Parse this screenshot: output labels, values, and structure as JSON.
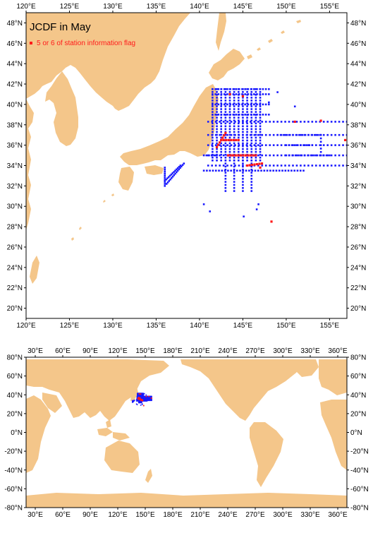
{
  "colors": {
    "land": "#f4c68a",
    "ocean": "#ffffff",
    "normal_station": "#1a1aff",
    "flagged_station": "#ff1a1a",
    "frame": "#000000"
  },
  "legend": {
    "title": "JCDF in May",
    "entry": "5 or 6 of station information flag"
  },
  "regional_map": {
    "lon_range": [
      120,
      157
    ],
    "lat_range": [
      19,
      49
    ],
    "lon_ticks": [
      {
        "value": 120,
        "label": "120°E"
      },
      {
        "value": 125,
        "label": "125°E"
      },
      {
        "value": 130,
        "label": "130°E"
      },
      {
        "value": 135,
        "label": "135°E"
      },
      {
        "value": 140,
        "label": "140°E"
      },
      {
        "value": 145,
        "label": "145°E"
      },
      {
        "value": 150,
        "label": "150°E"
      },
      {
        "value": 155,
        "label": "155°E"
      }
    ],
    "lat_ticks": [
      {
        "value": 20,
        "label": "20°N"
      },
      {
        "value": 22,
        "label": "22°N"
      },
      {
        "value": 24,
        "label": "24°N"
      },
      {
        "value": 26,
        "label": "26°N"
      },
      {
        "value": 28,
        "label": "28°N"
      },
      {
        "value": 30,
        "label": "30°N"
      },
      {
        "value": 32,
        "label": "32°N"
      },
      {
        "value": 34,
        "label": "34°N"
      },
      {
        "value": 36,
        "label": "36°N"
      },
      {
        "value": 38,
        "label": "38°N"
      },
      {
        "value": 40,
        "label": "40°N"
      },
      {
        "value": 42,
        "label": "42°N"
      },
      {
        "value": 44,
        "label": "44°N"
      },
      {
        "value": 46,
        "label": "46°N"
      },
      {
        "value": 48,
        "label": "48°N"
      }
    ]
  },
  "global_map": {
    "lon_range": [
      20,
      370
    ],
    "lat_range": [
      -80,
      80
    ],
    "lon_ticks": [
      {
        "value": 30,
        "label": "30°E"
      },
      {
        "value": 60,
        "label": "60°E"
      },
      {
        "value": 90,
        "label": "90°E"
      },
      {
        "value": 120,
        "label": "120°E"
      },
      {
        "value": 150,
        "label": "150°E"
      },
      {
        "value": 180,
        "label": "180°E"
      },
      {
        "value": 210,
        "label": "210°E"
      },
      {
        "value": 240,
        "label": "240°E"
      },
      {
        "value": 270,
        "label": "270°E"
      },
      {
        "value": 300,
        "label": "300°E"
      },
      {
        "value": 330,
        "label": "330°E"
      },
      {
        "value": 360,
        "label": "360°E"
      }
    ],
    "lat_ticks": [
      {
        "value": -80,
        "label": "-80°N"
      },
      {
        "value": -60,
        "label": "-60°N"
      },
      {
        "value": -40,
        "label": "-40°N"
      },
      {
        "value": -20,
        "label": "-20°N"
      },
      {
        "value": 0,
        "label": "0°N"
      },
      {
        "value": 20,
        "label": "20°N"
      },
      {
        "value": 40,
        "label": "40°N"
      },
      {
        "value": 60,
        "label": "60°N"
      },
      {
        "value": 80,
        "label": "80°N"
      }
    ]
  }
}
